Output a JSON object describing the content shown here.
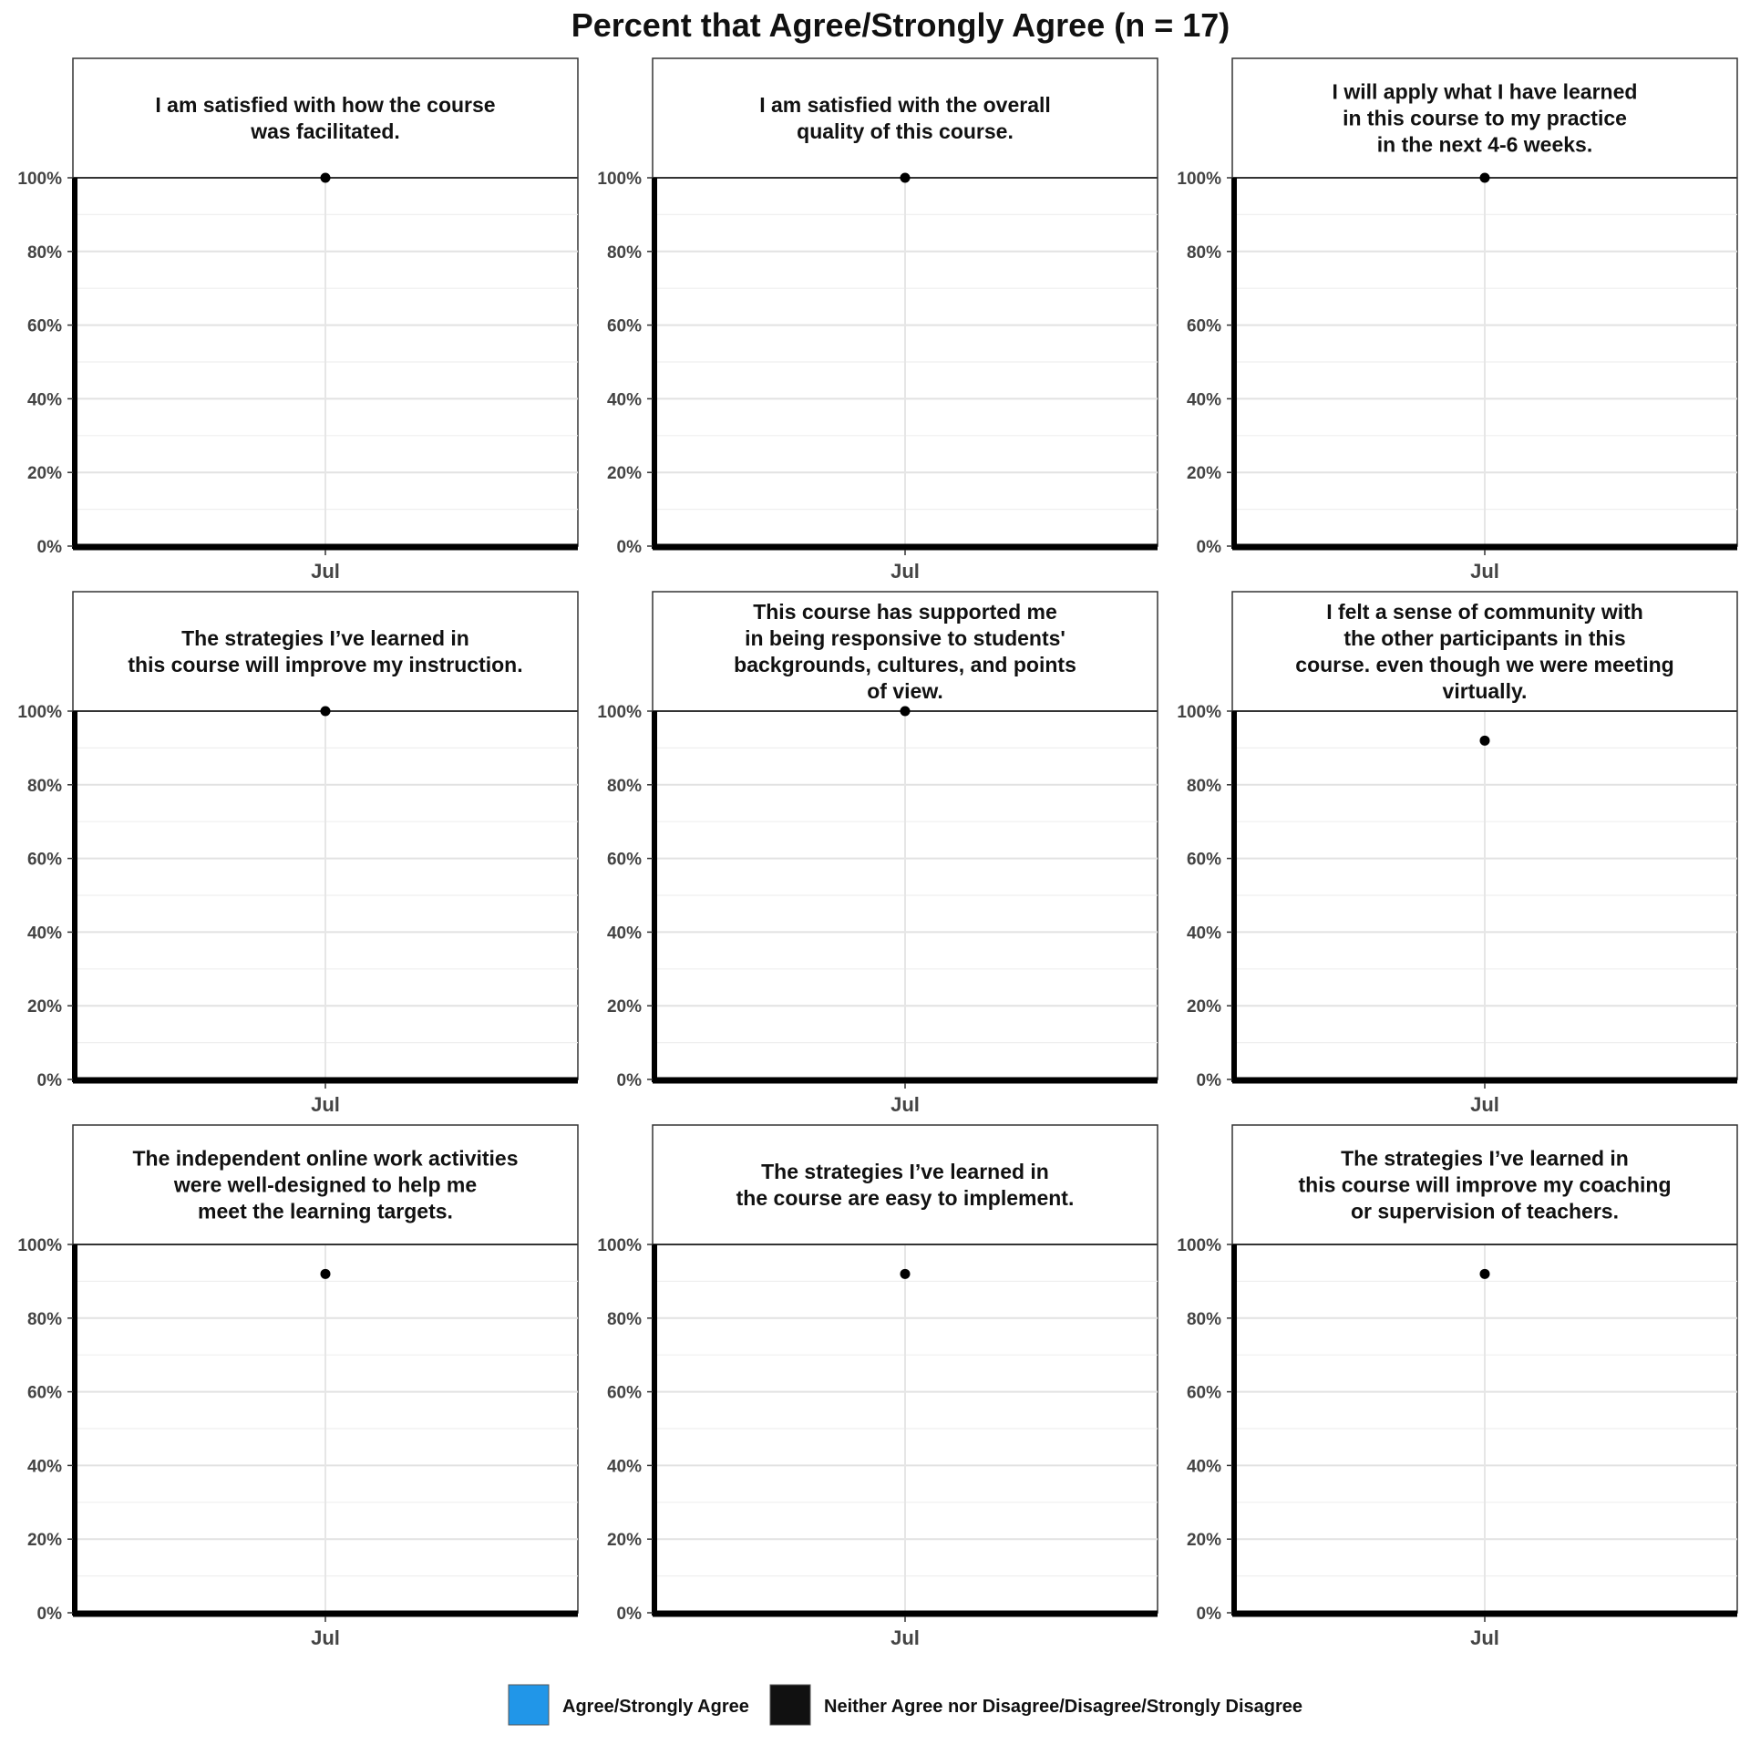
{
  "chart_data": {
    "type": "scatter",
    "title": "Percent that Agree/Strongly Agree (n = 17)",
    "y_ticks": [
      "0%",
      "20%",
      "40%",
      "60%",
      "80%",
      "100%"
    ],
    "ylim": [
      0,
      100
    ],
    "grid": true,
    "legend_position": "bottom",
    "legend": [
      {
        "label": "Agree/Strongly Agree",
        "color": "#2196e8"
      },
      {
        "label": "Neither Agree nor Disagree/Disagree/Strongly Disagree",
        "color": "#111111"
      }
    ],
    "panels": [
      {
        "title_lines": [
          "I am satisfied with how the course",
          "was facilitated."
        ],
        "categories": [
          "Jul"
        ],
        "values": [
          100
        ]
      },
      {
        "title_lines": [
          "I am satisfied with the overall",
          "quality of this course."
        ],
        "categories": [
          "Jul"
        ],
        "values": [
          100
        ]
      },
      {
        "title_lines": [
          "I will apply what I have learned",
          "in this course to my practice",
          "in the next 4-6 weeks."
        ],
        "categories": [
          "Jul"
        ],
        "values": [
          100
        ]
      },
      {
        "title_lines": [
          "The strategies I’ve learned in",
          "this course will improve my instruction."
        ],
        "categories": [
          "Jul"
        ],
        "values": [
          100
        ]
      },
      {
        "title_lines": [
          "This course has supported me",
          "in being responsive to students'",
          "backgrounds, cultures, and points",
          "of view."
        ],
        "categories": [
          "Jul"
        ],
        "values": [
          100
        ]
      },
      {
        "title_lines": [
          "I felt a sense of community with",
          "the other participants in this",
          "course. even though we were meeting",
          "virtually."
        ],
        "categories": [
          "Jul"
        ],
        "values": [
          92
        ]
      },
      {
        "title_lines": [
          "The independent online work activities",
          "were well-designed to help me",
          "meet the learning targets."
        ],
        "categories": [
          "Jul"
        ],
        "values": [
          92
        ]
      },
      {
        "title_lines": [
          "The strategies I’ve learned in",
          "the course are easy to implement."
        ],
        "categories": [
          "Jul"
        ],
        "values": [
          92
        ]
      },
      {
        "title_lines": [
          "The strategies I’ve learned in",
          "this course will improve my coaching",
          "or supervision of teachers."
        ],
        "categories": [
          "Jul"
        ],
        "values": [
          92
        ]
      }
    ]
  }
}
